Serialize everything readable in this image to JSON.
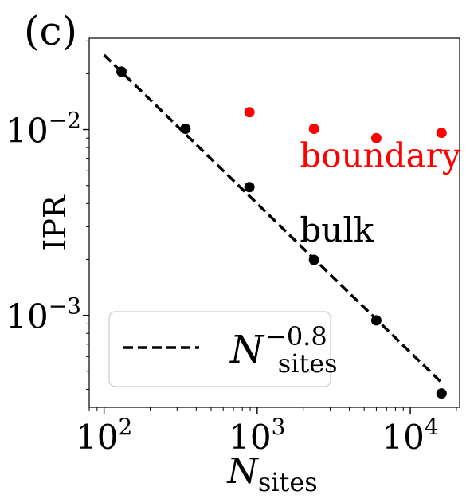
{
  "panel_label": "(c)",
  "chart_data": {
    "type": "scatter",
    "xlabel": {
      "base": "N",
      "sub": "sites"
    },
    "ylabel": "IPR",
    "xscale": "log",
    "yscale": "log",
    "xlim": [
      80,
      21000
    ],
    "ylim": [
      0.00032,
      0.031
    ],
    "x_ticks": [
      {
        "value": 100,
        "base": "10",
        "exp": "2"
      },
      {
        "value": 1000,
        "base": "10",
        "exp": "3"
      },
      {
        "value": 10000,
        "base": "10",
        "exp": "4"
      }
    ],
    "y_ticks": [
      {
        "value": 0.001,
        "base": "10",
        "exp": "−3"
      },
      {
        "value": 0.01,
        "base": "10",
        "exp": "−2"
      }
    ],
    "grid": false,
    "series": [
      {
        "name": "bulk",
        "color": "#000000",
        "x": [
          130,
          340,
          890,
          2350,
          6000,
          16000
        ],
        "y": [
          0.0205,
          0.0101,
          0.0049,
          0.00199,
          0.00094,
          0.00038
        ]
      },
      {
        "name": "boundary",
        "color": "#ff0000",
        "x": [
          890,
          2350,
          6000,
          16000
        ],
        "y": [
          0.0124,
          0.0101,
          0.009,
          0.0096
        ]
      }
    ],
    "fit_line": {
      "style": "dashed",
      "color": "#000000",
      "x": [
        100,
        16000
      ],
      "exponent": -0.8,
      "y_at_x0": 0.0252,
      "legend": {
        "base": "N",
        "sub": "sites",
        "sup": "−0.8"
      }
    },
    "annotations": [
      {
        "text": "boundary",
        "color": "#ff0000",
        "x": 1900,
        "y": 0.0063
      },
      {
        "text": "bulk",
        "color": "#000000",
        "x": 1900,
        "y": 0.0025
      }
    ],
    "legend_position": "lower-left"
  }
}
